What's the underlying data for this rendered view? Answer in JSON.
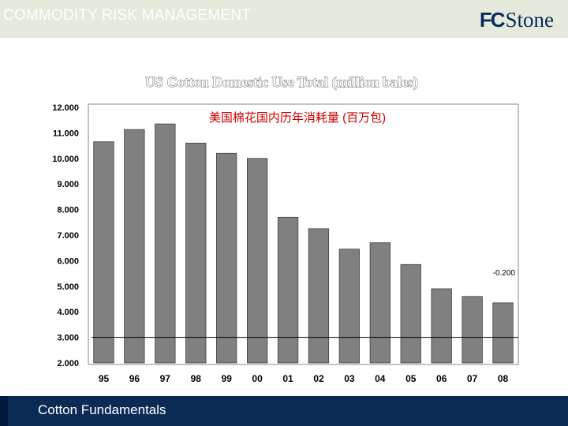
{
  "header": {
    "title": "COMMODITY RISK MANAGEMENT"
  },
  "logo": {
    "fc": "FC",
    "stone": "Stone"
  },
  "footer": {
    "text": "Cotton Fundamentals"
  },
  "colors": {
    "bar": "#808080",
    "bar_edge": "#404040",
    "header_band": "#e5eadd",
    "footer_band": "#0c2a56",
    "subtitle": "#cc0000"
  },
  "chart_data": {
    "type": "bar",
    "title": "US Cotton Domestic Use Total (million bales)",
    "subtitle": "美国棉花国内历年消耗量 (百万包)",
    "categories": [
      "95",
      "96",
      "97",
      "98",
      "99",
      "00",
      "01",
      "02",
      "03",
      "04",
      "05",
      "06",
      "07",
      "08"
    ],
    "values": [
      10.65,
      11.13,
      11.35,
      10.6,
      10.2,
      10.0,
      7.7,
      7.25,
      6.45,
      6.7,
      5.85,
      4.9,
      4.6,
      4.35
    ],
    "ylim": [
      2.0,
      12.0
    ],
    "yticks": [
      "12.000",
      "11.000",
      "10.000",
      "9.000",
      "8.000",
      "7.000",
      "6.000",
      "5.000",
      "4.000",
      "3.000",
      "2.000"
    ],
    "reference_line": 3.0,
    "annotation": "-0.200",
    "grid": false,
    "legend": "none"
  }
}
